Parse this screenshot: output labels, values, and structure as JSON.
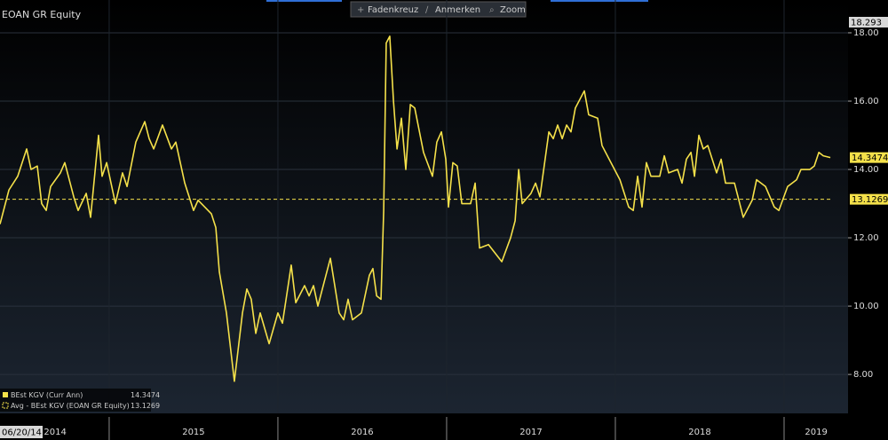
{
  "chart_data": {
    "type": "line",
    "title": "EOAN GR Equity",
    "toolbar": [
      "Fadenkreuz",
      "Anmerken",
      "Zoom"
    ],
    "start_date_label": "06/20/14",
    "axis_top_value": "18.293",
    "x": [
      2014.353,
      2014.406,
      2014.458,
      2014.511,
      2014.537,
      2014.574,
      2014.6,
      2014.627,
      2014.653,
      2014.711,
      2014.737,
      2014.79,
      2014.816,
      2014.864,
      2014.89,
      2014.937,
      2014.958,
      2014.985,
      2015.037,
      2015.079,
      2015.106,
      2015.158,
      2015.211,
      2015.237,
      2015.264,
      2015.316,
      2015.369,
      2015.395,
      2015.448,
      2015.5,
      2015.527,
      2015.606,
      2015.632,
      2015.653,
      2015.695,
      2015.742,
      2015.79,
      2015.816,
      2015.842,
      2015.869,
      2015.895,
      2015.948,
      2016.0,
      2016.027,
      2016.079,
      2016.106,
      2016.158,
      2016.185,
      2016.211,
      2016.237,
      2016.311,
      2016.363,
      2016.39,
      2016.416,
      2016.442,
      2016.495,
      2016.542,
      2016.563,
      2016.585,
      2016.611,
      2016.627,
      2016.642,
      2016.663,
      2016.685,
      2016.706,
      2016.732,
      2016.758,
      2016.785,
      2016.811,
      2016.863,
      2016.916,
      2016.942,
      2016.969,
      2016.995,
      2017.011,
      2017.037,
      2017.063,
      2017.09,
      2017.142,
      2017.169,
      2017.195,
      2017.248,
      2017.327,
      2017.379,
      2017.406,
      2017.427,
      2017.448,
      2017.5,
      2017.527,
      2017.553,
      2017.606,
      2017.632,
      2017.658,
      2017.685,
      2017.711,
      2017.737,
      2017.763,
      2017.816,
      2017.842,
      2017.895,
      2017.921,
      2017.974,
      2018.027,
      2018.079,
      2018.106,
      2018.132,
      2018.158,
      2018.184,
      2018.211,
      2018.263,
      2018.29,
      2018.316,
      2018.369,
      2018.395,
      2018.421,
      2018.448,
      2018.469,
      2018.495,
      2018.521,
      2018.548,
      2018.6,
      2018.627,
      2018.653,
      2018.706,
      2018.758,
      2018.811,
      2018.837,
      2018.89,
      2018.942,
      2018.969,
      2019.021,
      2019.074,
      2019.1,
      2019.153,
      2019.179,
      2019.206,
      2019.232,
      2019.274
    ],
    "series": [
      {
        "name": "BEst KGV (Curr Ann)",
        "color": "#f5e14a",
        "values": [
          12.4,
          13.4,
          13.8,
          14.6,
          14.0,
          14.1,
          13.0,
          12.8,
          13.5,
          13.9,
          14.2,
          13.2,
          12.8,
          13.3,
          12.6,
          15.0,
          13.8,
          14.2,
          13.0,
          13.9,
          13.5,
          14.8,
          15.4,
          14.9,
          14.6,
          15.3,
          14.6,
          14.8,
          13.6,
          12.8,
          13.1,
          12.7,
          12.3,
          11.0,
          9.8,
          7.8,
          9.8,
          10.5,
          10.2,
          9.2,
          9.8,
          8.9,
          9.8,
          9.5,
          11.2,
          10.1,
          10.6,
          10.3,
          10.6,
          10.0,
          11.4,
          9.8,
          9.6,
          10.2,
          9.6,
          9.8,
          10.9,
          11.1,
          10.3,
          10.2,
          12.8,
          17.7,
          17.9,
          16.0,
          14.6,
          15.5,
          14.0,
          15.9,
          15.8,
          14.5,
          13.8,
          14.8,
          15.1,
          14.3,
          12.9,
          14.2,
          14.1,
          13.0,
          13.0,
          13.6,
          11.7,
          11.8,
          11.3,
          12.0,
          12.5,
          14.0,
          13.0,
          13.3,
          13.6,
          13.2,
          15.1,
          14.9,
          15.3,
          14.9,
          15.3,
          15.1,
          15.8,
          16.3,
          15.6,
          15.5,
          14.7,
          14.2,
          13.7,
          12.9,
          12.8,
          13.8,
          12.9,
          14.2,
          13.8,
          13.8,
          14.4,
          13.9,
          14.0,
          13.6,
          14.3,
          14.5,
          13.8,
          15.0,
          14.6,
          14.7,
          13.9,
          14.3,
          13.6,
          13.6,
          12.6,
          13.1,
          13.7,
          13.5,
          12.9,
          12.8,
          13.5,
          13.7,
          14.0,
          14.0,
          14.1,
          14.5,
          14.4,
          14.3474
        ]
      }
    ],
    "average": {
      "name": "Avg - BEst KGV (EOAN GR Equity)",
      "color": "#f5e14a",
      "value": 13.1269
    },
    "xlim": [
      2014.353,
      2019.379
    ],
    "xticks": [
      {
        "value": 2014.68,
        "label": "2014"
      },
      {
        "value": 2015.5,
        "label": "2015"
      },
      {
        "value": 2016.5,
        "label": "2016"
      },
      {
        "value": 2017.5,
        "label": "2017"
      },
      {
        "value": 2018.5,
        "label": "2018"
      },
      {
        "value": 2019.19,
        "label": "2019"
      }
    ],
    "ylim": [
      6.86,
      18.96
    ],
    "yticks": [
      {
        "value": 8,
        "label": "8.00"
      },
      {
        "value": 10,
        "label": "10.00"
      },
      {
        "value": 12,
        "label": "12.00"
      },
      {
        "value": 14,
        "label": "14.00"
      },
      {
        "value": 16,
        "label": "16.00"
      },
      {
        "value": 18,
        "label": "18.00"
      }
    ],
    "grid": true
  }
}
